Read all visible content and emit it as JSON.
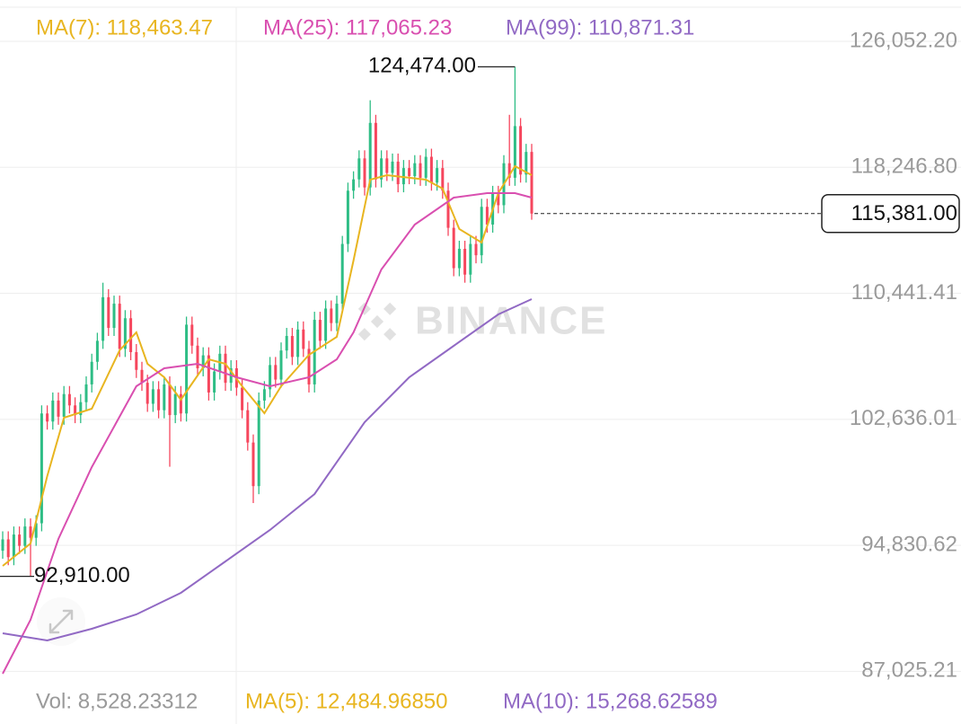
{
  "chart_data": {
    "type": "candlestick",
    "watermark": "BINANCE",
    "ylim": [
      86046,
      128611
    ],
    "yticks": [
      {
        "value": 126052.2,
        "label": "126,052.20"
      },
      {
        "value": 118246.8,
        "label": "118,246.80"
      },
      {
        "value": 110441.41,
        "label": "110,441.41"
      },
      {
        "value": 102636.01,
        "label": "102,636.01"
      },
      {
        "value": 94830.62,
        "label": "94,830.62"
      },
      {
        "value": 87025.21,
        "label": "87,025.21"
      }
    ],
    "grid": true,
    "up_color": "#2ebd85",
    "down_color": "#f6465d",
    "ohlc": [
      [
        94500,
        95700,
        94000,
        95200
      ],
      [
        95200,
        95700,
        93600,
        94100
      ],
      [
        94100,
        96000,
        93600,
        95500
      ],
      [
        95500,
        96000,
        94300,
        94800
      ],
      [
        94800,
        96500,
        94300,
        96000
      ],
      [
        96000,
        96500,
        92910,
        95300
      ],
      [
        95300,
        96700,
        94800,
        96200
      ],
      [
        96200,
        103500,
        95700,
        103000
      ],
      [
        103000,
        103500,
        102000,
        102500
      ],
      [
        102500,
        104300,
        102000,
        103800
      ],
      [
        103800,
        104300,
        102300,
        102800
      ],
      [
        102800,
        104700,
        102300,
        104200
      ],
      [
        104200,
        104700,
        103000,
        103500
      ],
      [
        103500,
        104000,
        102400,
        102900
      ],
      [
        102900,
        104200,
        102400,
        103700
      ],
      [
        103700,
        105300,
        103200,
        104800
      ],
      [
        104800,
        106700,
        104300,
        106200
      ],
      [
        106200,
        108000,
        105700,
        107500
      ],
      [
        107500,
        111100,
        107000,
        110200
      ],
      [
        110200,
        110700,
        107800,
        108300
      ],
      [
        108300,
        110300,
        107800,
        109800
      ],
      [
        109800,
        110300,
        106500,
        107000
      ],
      [
        107000,
        109400,
        106500,
        108900
      ],
      [
        108900,
        109400,
        106300,
        106800
      ],
      [
        106800,
        107300,
        105200,
        105700
      ],
      [
        105700,
        106200,
        104400,
        104900
      ],
      [
        104900,
        105400,
        103100,
        103600
      ],
      [
        103600,
        105000,
        103100,
        104500
      ],
      [
        104500,
        105000,
        102700,
        103200
      ],
      [
        103200,
        105300,
        102700,
        104800
      ],
      [
        104800,
        105300,
        99700,
        102900
      ],
      [
        102900,
        104700,
        102400,
        104200
      ],
      [
        104200,
        104700,
        102500,
        103000
      ],
      [
        103000,
        109000,
        102500,
        108500
      ],
      [
        108500,
        109000,
        106700,
        107200
      ],
      [
        107200,
        107700,
        105300,
        105800
      ],
      [
        105800,
        107100,
        105300,
        106600
      ],
      [
        106600,
        107100,
        103800,
        104300
      ],
      [
        104300,
        106100,
        103800,
        105600
      ],
      [
        105600,
        107200,
        105100,
        106700
      ],
      [
        106700,
        107200,
        104400,
        104900
      ],
      [
        104900,
        106300,
        104400,
        105800
      ],
      [
        105800,
        106300,
        104100,
        104600
      ],
      [
        104600,
        105100,
        102700,
        103200
      ],
      [
        103200,
        103700,
        100700,
        101200
      ],
      [
        101200,
        101700,
        97450,
        98500
      ],
      [
        98500,
        104300,
        98000,
        103800
      ],
      [
        103800,
        105000,
        103300,
        104500
      ],
      [
        104500,
        106500,
        104000,
        106000
      ],
      [
        106000,
        106500,
        104600,
        105100
      ],
      [
        105100,
        107400,
        104600,
        106900
      ],
      [
        106900,
        108300,
        106400,
        107800
      ],
      [
        107800,
        108300,
        106000,
        106500
      ],
      [
        106500,
        108700,
        106000,
        108200
      ],
      [
        108200,
        108700,
        106500,
        107000
      ],
      [
        107000,
        107500,
        104300,
        104800
      ],
      [
        104800,
        109300,
        104300,
        108800
      ],
      [
        108800,
        109300,
        107000,
        107500
      ],
      [
        107500,
        110000,
        107000,
        109500
      ],
      [
        109500,
        110000,
        108100,
        108600
      ],
      [
        108600,
        110300,
        108100,
        109800
      ],
      [
        109800,
        114000,
        109300,
        113500
      ],
      [
        113500,
        117300,
        113000,
        116800
      ],
      [
        116800,
        118000,
        116300,
        117500
      ],
      [
        117500,
        119300,
        117000,
        118800
      ],
      [
        118800,
        119300,
        116500,
        117000
      ],
      [
        117000,
        122400,
        116500,
        121000
      ],
      [
        121000,
        121500,
        117000,
        117500
      ],
      [
        117500,
        119300,
        117000,
        118800
      ],
      [
        118800,
        119300,
        117400,
        117900
      ],
      [
        117900,
        119100,
        117400,
        118600
      ],
      [
        118600,
        119100,
        116700,
        117200
      ],
      [
        117200,
        118700,
        116700,
        118200
      ],
      [
        118200,
        118700,
        117200,
        117700
      ],
      [
        117700,
        119000,
        117200,
        118500
      ],
      [
        118500,
        119000,
        117100,
        117600
      ],
      [
        117600,
        119400,
        117100,
        118900
      ],
      [
        118900,
        119400,
        116800,
        117300
      ],
      [
        117300,
        118700,
        116800,
        118200
      ],
      [
        118200,
        118700,
        116300,
        116800
      ],
      [
        116800,
        117300,
        114000,
        114500
      ],
      [
        114500,
        115000,
        111500,
        112000
      ],
      [
        112000,
        113700,
        111500,
        113200
      ],
      [
        113200,
        113700,
        111100,
        111600
      ],
      [
        111600,
        114000,
        111100,
        113500
      ],
      [
        113500,
        114000,
        112300,
        112800
      ],
      [
        112800,
        116300,
        112300,
        115800
      ],
      [
        115800,
        116300,
        114200,
        114700
      ],
      [
        114700,
        117100,
        114200,
        116600
      ],
      [
        116600,
        117100,
        115400,
        115900
      ],
      [
        115900,
        119000,
        115400,
        118500
      ],
      [
        118500,
        121500,
        117100,
        117600
      ],
      [
        117600,
        124474,
        117100,
        120800
      ],
      [
        120800,
        121300,
        117300,
        117800
      ],
      [
        117800,
        119700,
        117300,
        119200
      ],
      [
        119200,
        119700,
        115000,
        115381
      ]
    ],
    "series": [
      {
        "legend": "MA(7): 118,463.47",
        "color": "#e8b520",
        "x": [
          0,
          5,
          8,
          11,
          16,
          21,
          24,
          26,
          29,
          32,
          37,
          40,
          43,
          47,
          50,
          55,
          60,
          63,
          66,
          69,
          76,
          79,
          82,
          86,
          89,
          92,
          95
        ],
        "values": [
          93558,
          94949,
          99122,
          102739,
          103295,
          106912,
          108025,
          106077,
          105243,
          103852,
          106355,
          106077,
          104686,
          103017,
          104686,
          106634,
          107746,
          112476,
          117483,
          117762,
          117483,
          116927,
          114423,
          113589,
          116649,
          118318,
          117762
        ]
      },
      {
        "legend": "MA(25): 117,065.23",
        "color": "#d94fb0",
        "x": [
          0,
          5,
          10,
          16,
          24,
          29,
          35,
          42,
          48,
          55,
          60,
          63,
          68,
          74,
          81,
          87,
          92,
          95
        ],
        "values": [
          86881,
          90220,
          95227,
          99679,
          104686,
          105799,
          106077,
          105243,
          104686,
          105243,
          106355,
          108025,
          111919,
          114701,
          116371,
          116649,
          116649,
          116371
        ]
      },
      {
        "legend": "MA(99): 110,871.31",
        "color": "#9169c4",
        "x": [
          0,
          8,
          16,
          24,
          32,
          40,
          48,
          56,
          65,
          73,
          81,
          89,
          95
        ],
        "values": [
          89385,
          88940,
          89663,
          90554,
          91889,
          93836,
          95784,
          98009,
          102461,
          105243,
          107190,
          109137,
          110083
        ]
      }
    ],
    "high_label": {
      "value": 124474,
      "label": "124,474.00"
    },
    "low_label": {
      "value": 92910,
      "label": "92,910.00"
    },
    "last_price": {
      "value": 115381,
      "label": "115,381.00"
    },
    "footer": [
      {
        "text": "Vol: 8,528.23312",
        "color": "#9a9a9a"
      },
      {
        "text": "MA(5): 12,484.96850",
        "color": "#e8b520"
      },
      {
        "text": "MA(10): 15,268.62589",
        "color": "#9169c4"
      }
    ]
  }
}
